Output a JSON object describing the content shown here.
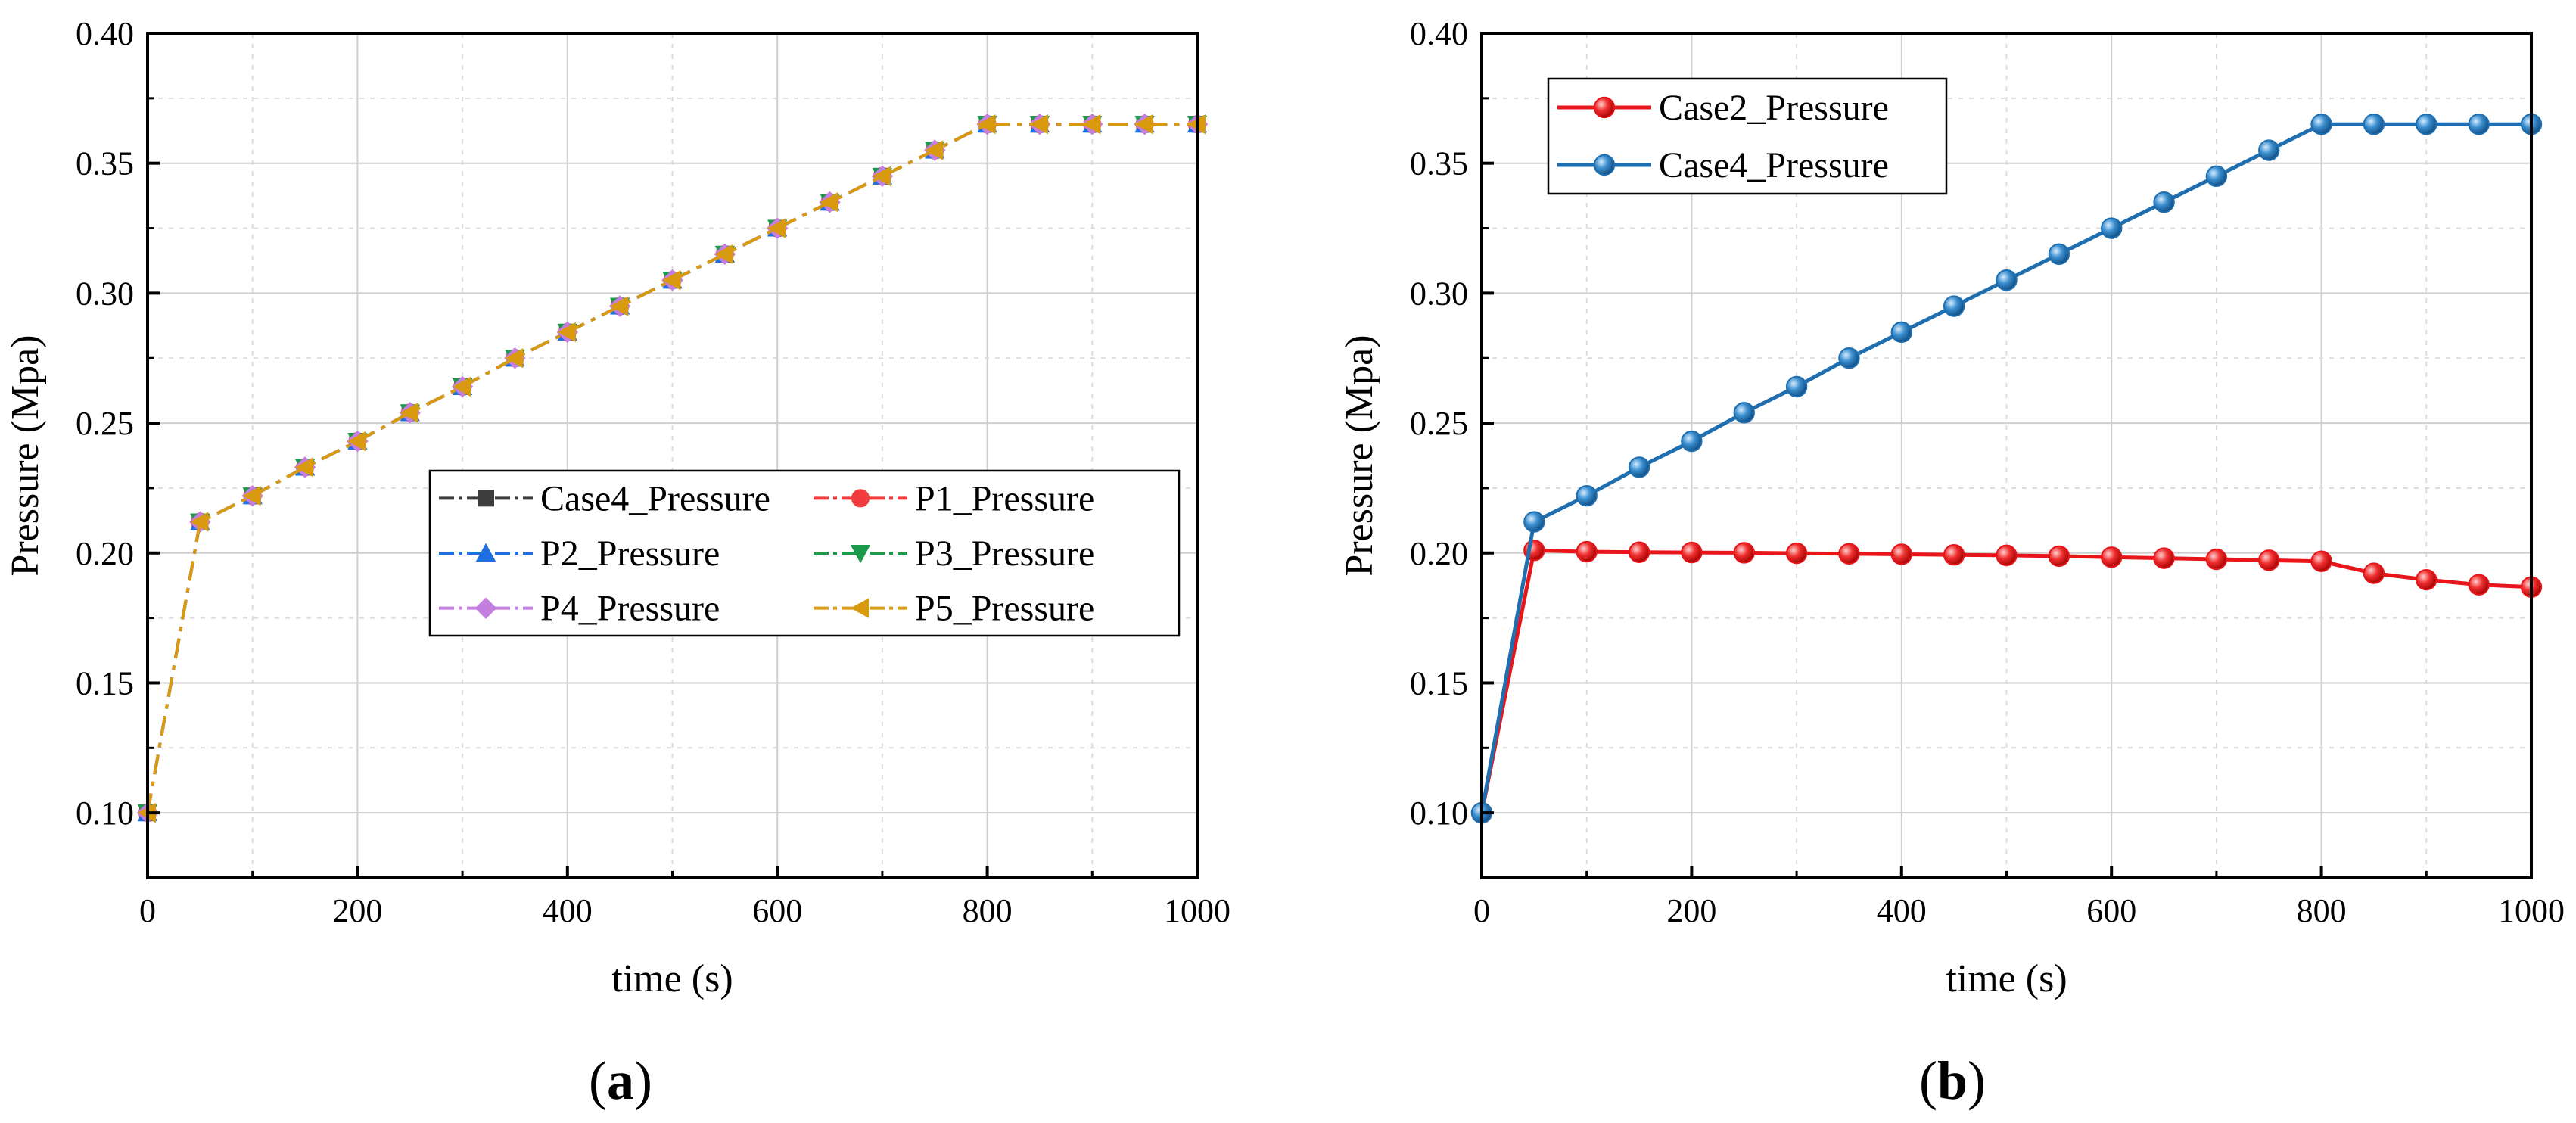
{
  "chart_data": [
    {
      "panel_label": "a",
      "type": "line",
      "xlabel": "time (s)",
      "ylabel": "Pressure (Mpa)",
      "xlim": [
        0,
        1000
      ],
      "ylim": [
        0.075,
        0.4
      ],
      "xticks": [
        0,
        200,
        400,
        600,
        800,
        1000
      ],
      "yticks": [
        0.1,
        0.15,
        0.2,
        0.25,
        0.3,
        0.35,
        0.4
      ],
      "x_tick_labels": [
        "0",
        "200",
        "400",
        "600",
        "800",
        "1000"
      ],
      "y_tick_labels": [
        "0.10",
        "0.15",
        "0.20",
        "0.25",
        "0.30",
        "0.35",
        "0.40"
      ],
      "grid": true,
      "legend_position": "center-right",
      "legend_columns": 2,
      "x": [
        0,
        50,
        100,
        150,
        200,
        250,
        300,
        350,
        400,
        450,
        500,
        550,
        600,
        650,
        700,
        750,
        800,
        850,
        900,
        950,
        1000
      ],
      "series": [
        {
          "name": "Case4_Pressure",
          "color": "#3d3d3d",
          "marker": "square",
          "dash": "dashdot",
          "values": [
            0.1,
            0.212,
            0.222,
            0.233,
            0.243,
            0.254,
            0.264,
            0.275,
            0.285,
            0.295,
            0.305,
            0.315,
            0.325,
            0.335,
            0.345,
            0.355,
            0.365,
            0.365,
            0.365,
            0.365,
            0.365
          ]
        },
        {
          "name": "P1_Pressure",
          "color": "#f03c3c",
          "marker": "circle",
          "dash": "dashdot",
          "values": [
            0.1,
            0.212,
            0.222,
            0.233,
            0.243,
            0.254,
            0.264,
            0.275,
            0.285,
            0.295,
            0.305,
            0.315,
            0.325,
            0.335,
            0.345,
            0.355,
            0.365,
            0.365,
            0.365,
            0.365,
            0.365
          ]
        },
        {
          "name": "P2_Pressure",
          "color": "#1f6fe0",
          "marker": "triangle-up",
          "dash": "dashdot",
          "values": [
            0.1,
            0.212,
            0.222,
            0.233,
            0.243,
            0.254,
            0.264,
            0.275,
            0.285,
            0.295,
            0.305,
            0.315,
            0.325,
            0.335,
            0.345,
            0.355,
            0.365,
            0.365,
            0.365,
            0.365,
            0.365
          ]
        },
        {
          "name": "P3_Pressure",
          "color": "#1a9a4a",
          "marker": "triangle-down",
          "dash": "dashdot",
          "values": [
            0.1,
            0.212,
            0.222,
            0.233,
            0.243,
            0.254,
            0.264,
            0.275,
            0.285,
            0.295,
            0.305,
            0.315,
            0.325,
            0.335,
            0.345,
            0.355,
            0.365,
            0.365,
            0.365,
            0.365,
            0.365
          ]
        },
        {
          "name": "P4_Pressure",
          "color": "#c47ee0",
          "marker": "diamond",
          "dash": "dashdot",
          "values": [
            0.1,
            0.212,
            0.222,
            0.233,
            0.243,
            0.254,
            0.264,
            0.275,
            0.285,
            0.295,
            0.305,
            0.315,
            0.325,
            0.335,
            0.345,
            0.355,
            0.365,
            0.365,
            0.365,
            0.365,
            0.365
          ]
        },
        {
          "name": "P5_Pressure",
          "color": "#d99a0f",
          "marker": "triangle-left",
          "dash": "dashdot",
          "values": [
            0.1,
            0.212,
            0.222,
            0.233,
            0.243,
            0.254,
            0.264,
            0.275,
            0.285,
            0.295,
            0.305,
            0.315,
            0.325,
            0.335,
            0.345,
            0.355,
            0.365,
            0.365,
            0.365,
            0.365,
            0.365
          ]
        }
      ]
    },
    {
      "panel_label": "b",
      "type": "line",
      "xlabel": "time (s)",
      "ylabel": "Pressure (Mpa)",
      "xlim": [
        0,
        1000
      ],
      "ylim": [
        0.075,
        0.4
      ],
      "xticks": [
        0,
        200,
        400,
        600,
        800,
        1000
      ],
      "yticks": [
        0.1,
        0.15,
        0.2,
        0.25,
        0.3,
        0.35,
        0.4
      ],
      "x_tick_labels": [
        "0",
        "200",
        "400",
        "600",
        "800",
        "1000"
      ],
      "y_tick_labels": [
        "0.10",
        "0.15",
        "0.20",
        "0.25",
        "0.30",
        "0.35",
        "0.40"
      ],
      "grid": true,
      "legend_position": "top-left",
      "legend_columns": 1,
      "x": [
        0,
        50,
        100,
        150,
        200,
        250,
        300,
        350,
        400,
        450,
        500,
        550,
        600,
        650,
        700,
        750,
        800,
        850,
        900,
        950,
        1000
      ],
      "series": [
        {
          "name": "Case2_Pressure",
          "color": "#e8161b",
          "marker": "sphere",
          "dash": "solid",
          "values": [
            0.1,
            0.201,
            0.2005,
            0.2003,
            0.2002,
            0.2001,
            0.1999,
            0.1997,
            0.1995,
            0.1993,
            0.1991,
            0.1988,
            0.1984,
            0.198,
            0.1976,
            0.1972,
            0.1968,
            0.1922,
            0.1897,
            0.1878,
            0.1869
          ]
        },
        {
          "name": "Case4_Pressure",
          "color": "#1f6fb0",
          "marker": "sphere",
          "dash": "solid",
          "values": [
            0.1,
            0.212,
            0.222,
            0.233,
            0.243,
            0.254,
            0.264,
            0.275,
            0.285,
            0.295,
            0.305,
            0.315,
            0.325,
            0.335,
            0.345,
            0.355,
            0.365,
            0.365,
            0.365,
            0.365,
            0.365
          ]
        }
      ]
    }
  ]
}
